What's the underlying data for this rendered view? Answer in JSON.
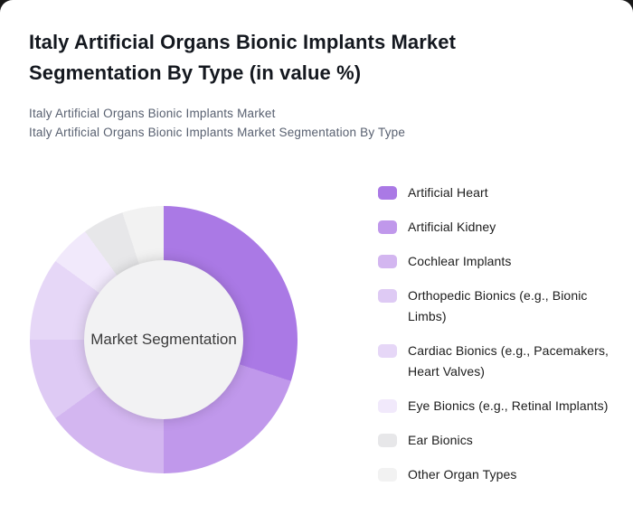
{
  "page": {
    "title": "Italy Artificial Organs Bionic Implants Market Segmentation By Type (in value %)",
    "subtitle_lines": [
      "Italy Artificial Organs Bionic Implants Market",
      "Italy Artificial Organs Bionic Implants Market Segmentation By Type"
    ],
    "card_background": "#ffffff",
    "backdrop_color": "#181818"
  },
  "chart_data": {
    "type": "pie",
    "variant": "donut",
    "title": "Italy Artificial Organs Bionic Implants Market Segmentation By Type (in value %)",
    "center_label": "Market Segmentation",
    "unit": "%",
    "start_angle_deg": 0,
    "direction": "clockwise",
    "legend_position": "right",
    "inner_radius_ratio": 0.595,
    "hole_color": "#f2f2f3",
    "segments": [
      {
        "label": "Artificial Heart",
        "value": 30,
        "color": "#aa79e5"
      },
      {
        "label": "Artificial Kidney",
        "value": 20,
        "color": "#c098eb"
      },
      {
        "label": "Cochlear Implants",
        "value": 15,
        "color": "#d3b6f0"
      },
      {
        "label": "Orthopedic Bionics (e.g., Bionic Limbs)",
        "value": 10,
        "color": "#decaf4"
      },
      {
        "label": "Cardiac Bionics (e.g., Pacemakers, Heart Valves)",
        "value": 10,
        "color": "#e6d7f7"
      },
      {
        "label": "Eye Bionics (e.g., Retinal Implants)",
        "value": 5,
        "color": "#f1e9fb"
      },
      {
        "label": "Ear Bionics",
        "value": 5,
        "color": "#e7e7e9"
      },
      {
        "label": "Other Organ Types",
        "value": 5,
        "color": "#f2f2f2"
      }
    ]
  }
}
